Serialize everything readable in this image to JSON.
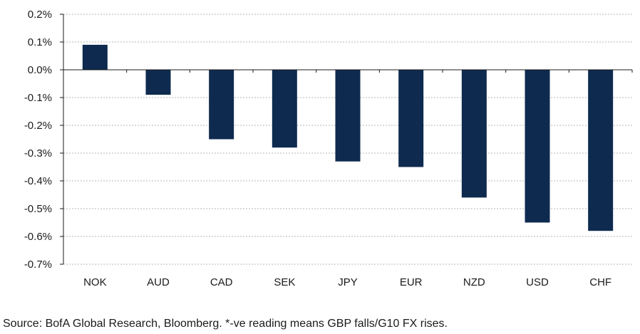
{
  "chart_data": {
    "type": "bar",
    "categories": [
      "NOK",
      "AUD",
      "CAD",
      "SEK",
      "JPY",
      "EUR",
      "NZD",
      "USD",
      "CHF"
    ],
    "values": [
      0.09,
      -0.09,
      -0.25,
      -0.28,
      -0.33,
      -0.35,
      -0.46,
      -0.55,
      -0.58
    ],
    "value_unit": "%",
    "ylim": [
      -0.7,
      0.2
    ],
    "yticks": [
      0.2,
      0.1,
      0.0,
      -0.1,
      -0.2,
      -0.3,
      -0.4,
      -0.5,
      -0.6,
      -0.7
    ],
    "ytick_labels": [
      "0.2%",
      "0.1%",
      "0.0%",
      "-0.1%",
      "-0.2%",
      "-0.3%",
      "-0.4%",
      "-0.5%",
      "-0.6%",
      "-0.7%"
    ],
    "grid": true,
    "bar_color": "#0e2a4f",
    "title": "",
    "xlabel": "",
    "ylabel": ""
  },
  "footer": {
    "source": "Source: BofA Global Research, Bloomberg. *-ve reading means GBP falls/G10 FX rises."
  }
}
